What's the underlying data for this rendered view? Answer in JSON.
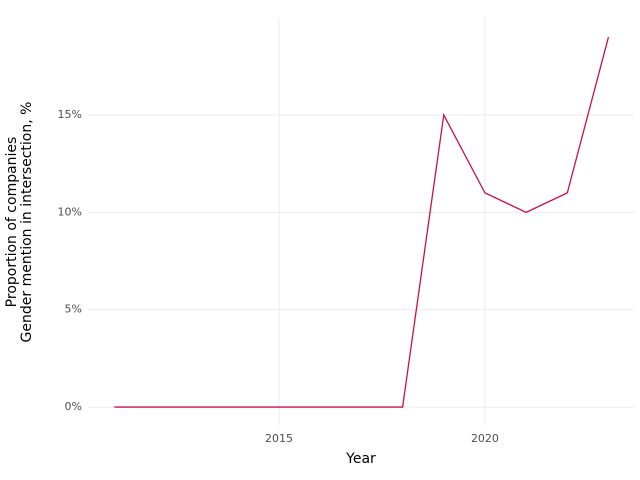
{
  "chart_data": {
    "type": "line",
    "xlabel": "Year",
    "ylabel": [
      "Proportion of companies",
      "Gender mention in intersection, %"
    ],
    "x": [
      2011,
      2012,
      2013,
      2014,
      2015,
      2016,
      2017,
      2018,
      2019,
      2020,
      2021,
      2022,
      2023
    ],
    "series": [
      {
        "color": "#c8104e",
        "values": [
          0,
          0,
          0,
          0,
          0,
          0,
          0,
          0,
          15,
          11,
          10,
          11,
          19
        ]
      }
    ],
    "xlim": [
      2010.36,
      2023.62
    ],
    "xticks": [
      2015,
      2020
    ],
    "ylim": [
      -0.92,
      19.98
    ],
    "yticks": [
      {
        "value": 0,
        "label": "0%"
      },
      {
        "value": 5,
        "label": "5%"
      },
      {
        "value": 10,
        "label": "10%"
      },
      {
        "value": 15,
        "label": "15%"
      }
    ],
    "grid": true
  }
}
